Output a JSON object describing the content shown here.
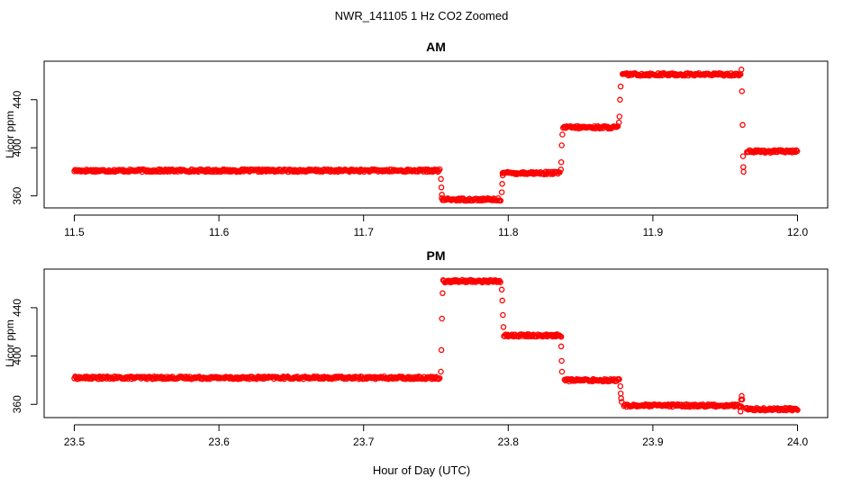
{
  "figure": {
    "title": "NWR_141105  1 Hz CO2 Zoomed",
    "xlabel": "Hour of Day (UTC)"
  },
  "chart_data": [
    {
      "type": "scatter",
      "title": "AM",
      "ylabel": "Licor ppm",
      "xlim": [
        11.5,
        12.0
      ],
      "ylim": [
        353,
        469
      ],
      "xticks": [
        11.5,
        11.6,
        11.7,
        11.8,
        11.9,
        12.0
      ],
      "xtick_labels": [
        "11.5",
        "11.6",
        "11.7",
        "11.8",
        "11.9",
        "12.0"
      ],
      "yticks": [
        360,
        400,
        440
      ],
      "ytick_labels": [
        "360",
        "400",
        "440"
      ],
      "marker_color": "#ff0000",
      "segments": [
        {
          "x": [
            11.5,
            11.753
          ],
          "y": 381
        },
        {
          "x": [
            11.754,
            11.795
          ],
          "y": 357
        },
        {
          "x": [
            11.796,
            11.836
          ],
          "y": 379
        },
        {
          "x": [
            11.838,
            11.876
          ],
          "y": 417
        },
        {
          "x": [
            11.879,
            11.961
          ],
          "y": 461
        },
        {
          "x": [
            11.965,
            12.0
          ],
          "y": 397
        }
      ],
      "transition_points": [
        {
          "x": 11.7535,
          "y": 374
        },
        {
          "x": 11.7538,
          "y": 367
        },
        {
          "x": 11.7541,
          "y": 361
        },
        {
          "x": 11.7955,
          "y": 363
        },
        {
          "x": 11.7958,
          "y": 370
        },
        {
          "x": 11.7962,
          "y": 377
        },
        {
          "x": 11.8364,
          "y": 382
        },
        {
          "x": 11.8367,
          "y": 388
        },
        {
          "x": 11.837,
          "y": 402
        },
        {
          "x": 11.8374,
          "y": 411
        },
        {
          "x": 11.8765,
          "y": 421
        },
        {
          "x": 11.8769,
          "y": 426
        },
        {
          "x": 11.8773,
          "y": 440
        },
        {
          "x": 11.8777,
          "y": 451
        },
        {
          "x": 11.9612,
          "y": 465
        },
        {
          "x": 11.9616,
          "y": 447
        },
        {
          "x": 11.962,
          "y": 419
        },
        {
          "x": 11.9623,
          "y": 393
        },
        {
          "x": 11.9625,
          "y": 384
        },
        {
          "x": 11.9627,
          "y": 380
        }
      ]
    },
    {
      "type": "scatter",
      "title": "PM",
      "ylabel": "Licor ppm",
      "xlim": [
        23.5,
        24.0
      ],
      "ylim": [
        352,
        469
      ],
      "xticks": [
        23.5,
        23.6,
        23.7,
        23.8,
        23.9,
        24.0
      ],
      "xtick_labels": [
        "23.5",
        "23.6",
        "23.7",
        "23.8",
        "23.9",
        "24.0"
      ],
      "yticks": [
        360,
        400,
        440
      ],
      "ytick_labels": [
        "360",
        "400",
        "440"
      ],
      "marker_color": "#ff0000",
      "segments": [
        {
          "x": [
            23.5,
            23.753
          ],
          "y": 382
        },
        {
          "x": [
            23.755,
            23.795
          ],
          "y": 462
        },
        {
          "x": [
            23.797,
            23.837
          ],
          "y": 417
        },
        {
          "x": [
            23.839,
            23.877
          ],
          "y": 380
        },
        {
          "x": [
            23.88,
            23.961
          ],
          "y": 359
        },
        {
          "x": [
            23.964,
            24.0
          ],
          "y": 356
        }
      ],
      "transition_points": [
        {
          "x": 23.7534,
          "y": 387
        },
        {
          "x": 23.7538,
          "y": 405
        },
        {
          "x": 23.7542,
          "y": 431
        },
        {
          "x": 23.7546,
          "y": 452
        },
        {
          "x": 23.7955,
          "y": 455
        },
        {
          "x": 23.7959,
          "y": 446
        },
        {
          "x": 23.7963,
          "y": 434
        },
        {
          "x": 23.7967,
          "y": 424
        },
        {
          "x": 23.8366,
          "y": 408
        },
        {
          "x": 23.8369,
          "y": 396
        },
        {
          "x": 23.8372,
          "y": 387
        },
        {
          "x": 23.8775,
          "y": 375
        },
        {
          "x": 23.8778,
          "y": 369
        },
        {
          "x": 23.8781,
          "y": 365
        },
        {
          "x": 23.8784,
          "y": 362
        },
        {
          "x": 23.9606,
          "y": 354
        },
        {
          "x": 23.961,
          "y": 364
        },
        {
          "x": 23.9614,
          "y": 367
        },
        {
          "x": 23.9618,
          "y": 364
        }
      ]
    }
  ]
}
